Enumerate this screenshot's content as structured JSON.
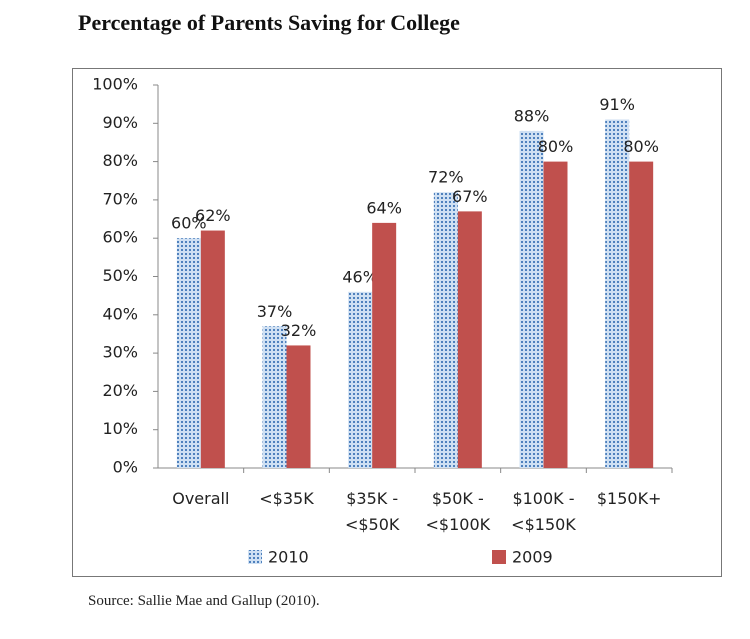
{
  "chart_data": {
    "type": "bar",
    "title": "Percentage of Parents Saving for College",
    "source": "Source: Sallie Mae and Gallup (2010).",
    "categories": [
      "Overall",
      "<$35K",
      "$35K - <$50K",
      "$50K - <$100K",
      "$100K - <$150K",
      "$150K+"
    ],
    "series": [
      {
        "name": "2010",
        "color": "#4f81bd",
        "pattern": "dots",
        "values": [
          60,
          37,
          46,
          72,
          88,
          91
        ],
        "value_labels": [
          "60%",
          "37%",
          "46%",
          "72%",
          "88%",
          "91%"
        ]
      },
      {
        "name": "2009",
        "color": "#c0504d",
        "values": [
          62,
          32,
          64,
          67,
          80,
          80
        ],
        "value_labels": [
          "62%",
          "32%",
          "64%",
          "67%",
          "80%",
          "80%"
        ]
      }
    ],
    "ylim": [
      0,
      100
    ],
    "yticks": [
      {
        "value": 0,
        "label": "0%"
      },
      {
        "value": 10,
        "label": "10%"
      },
      {
        "value": 20,
        "label": "20%"
      },
      {
        "value": 30,
        "label": "30%"
      },
      {
        "value": 40,
        "label": "40%"
      },
      {
        "value": 50,
        "label": "50%"
      },
      {
        "value": 60,
        "label": "60%"
      },
      {
        "value": 70,
        "label": "70%"
      },
      {
        "value": 80,
        "label": "80%"
      },
      {
        "value": 90,
        "label": "90%"
      },
      {
        "value": 100,
        "label": "100%"
      }
    ],
    "grid": false,
    "legend": "bottom"
  }
}
